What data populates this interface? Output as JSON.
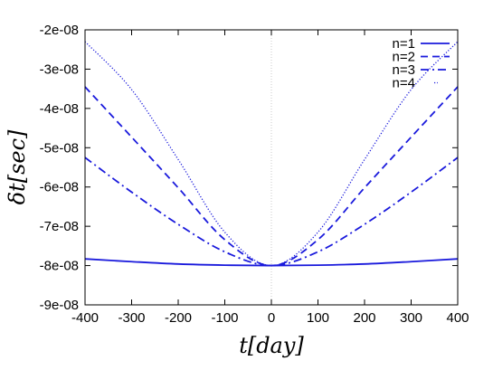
{
  "chart_data": {
    "type": "line",
    "title": "",
    "xlabel": "t[day]",
    "ylabel": "δt[sec]",
    "xlim": [
      -400,
      400
    ],
    "ylim": [
      -9e-08,
      -2e-08
    ],
    "xticks": [
      "-400",
      "-300",
      "-200",
      "-100",
      "0",
      "100",
      "200",
      "300",
      "400"
    ],
    "yticks": [
      "-2e-08",
      "-3e-08",
      "-4e-08",
      "-5e-08",
      "-6e-08",
      "-7e-08",
      "-8e-08",
      "-9e-08"
    ],
    "grid": false,
    "zero_line": "vertical dotted line at t=0",
    "legend_position": "top-right",
    "color": "#1a1adc",
    "series": [
      {
        "name": "n=1",
        "style": "solid",
        "x": [
          -400,
          -300,
          -200,
          -100,
          0,
          100,
          200,
          300,
          400
        ],
        "y": [
          -7.83e-08,
          -7.9e-08,
          -7.96e-08,
          -7.99e-08,
          -8e-08,
          -7.99e-08,
          -7.96e-08,
          -7.9e-08,
          -7.83e-08
        ]
      },
      {
        "name": "n=2",
        "style": "dashed",
        "x": [
          -400,
          -300,
          -200,
          -100,
          0,
          100,
          200,
          300,
          400
        ],
        "y": [
          -3.45e-08,
          -4.73e-08,
          -6.02e-08,
          -7.34e-08,
          -8e-08,
          -7.34e-08,
          -6.02e-08,
          -4.73e-08,
          -3.45e-08
        ]
      },
      {
        "name": "n=3",
        "style": "dash-dot",
        "x": [
          -400,
          -300,
          -200,
          -100,
          0,
          100,
          200,
          300,
          400
        ],
        "y": [
          -5.25e-08,
          -6.13e-08,
          -6.95e-08,
          -7.65e-08,
          -8e-08,
          -7.65e-08,
          -6.95e-08,
          -6.13e-08,
          -5.25e-08
        ]
      },
      {
        "name": "n=4",
        "style": "dotted",
        "x": [
          -400,
          -300,
          -200,
          -100,
          0,
          100,
          200,
          300,
          400
        ],
        "y": [
          -2.3e-08,
          -3.52e-08,
          -5.3e-08,
          -7.15e-08,
          -8e-08,
          -7.15e-08,
          -5.3e-08,
          -3.52e-08,
          -2.3e-08
        ]
      }
    ]
  }
}
